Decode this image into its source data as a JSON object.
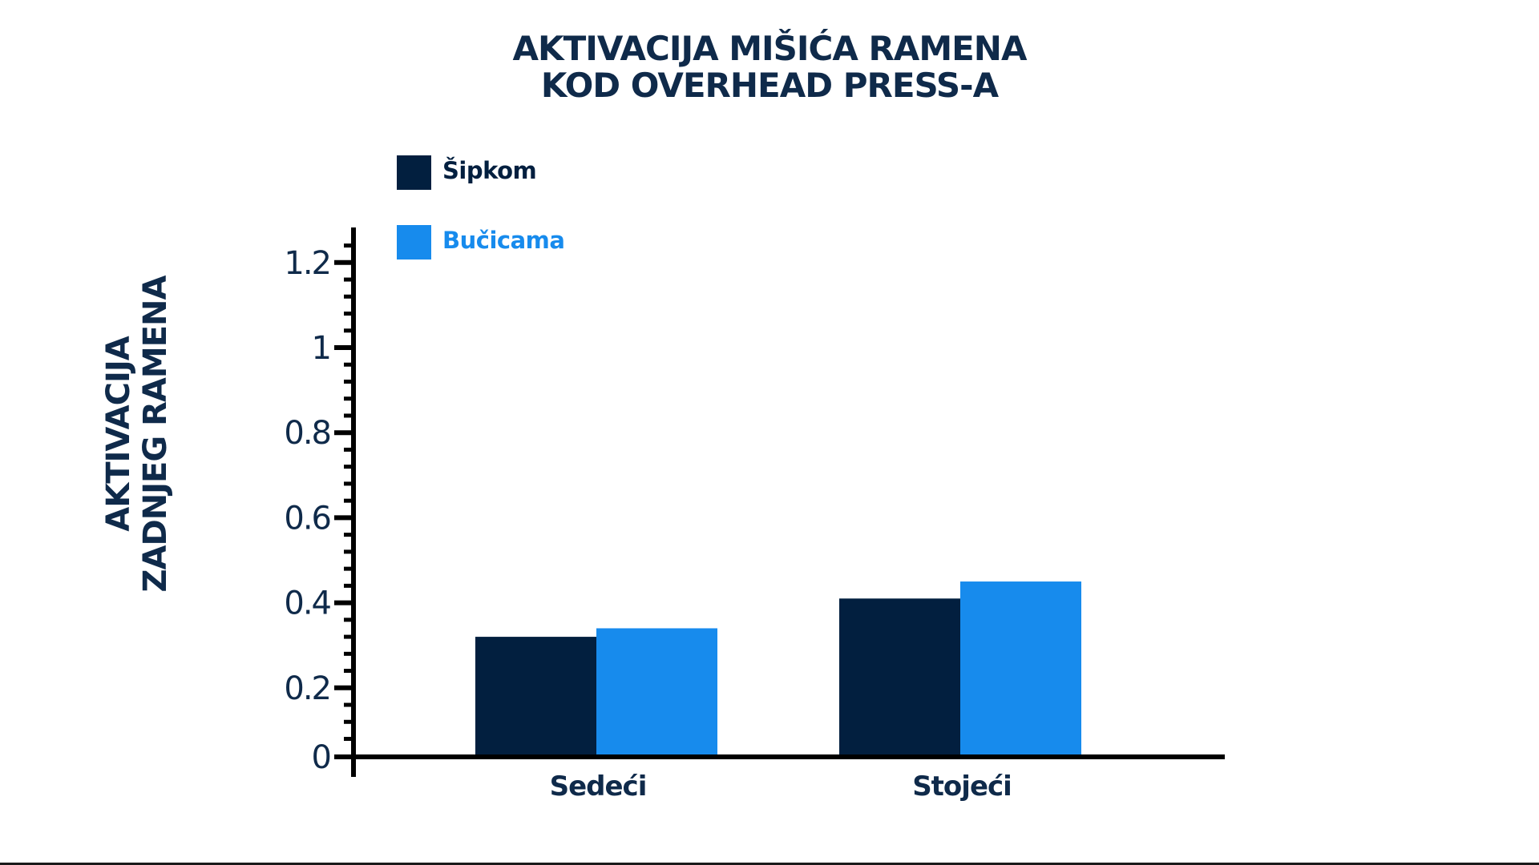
{
  "chart_data": {
    "type": "bar",
    "title_lines": [
      "AKTIVACIJA MIŠIĆA RAMENA",
      "KOD OVERHEAD PRESS-A"
    ],
    "ylabel_lines": [
      "AKTIVACIJA",
      "ZADNJEG RAMENA"
    ],
    "xlabel": "",
    "categories": [
      "Sedeći",
      "Stojeći"
    ],
    "series": [
      {
        "name": "Šipkom",
        "color": "#021f3f",
        "values": [
          0.32,
          0.41
        ]
      },
      {
        "name": "Bučicama",
        "color": "#178bed",
        "values": [
          0.34,
          0.45
        ]
      }
    ],
    "yticks": [
      "0",
      "0.2",
      "0.4",
      "0.6",
      "0.8",
      "1",
      "1.2"
    ],
    "ylim": [
      0,
      1.25
    ],
    "grid": false,
    "legend_position": "top-left"
  }
}
